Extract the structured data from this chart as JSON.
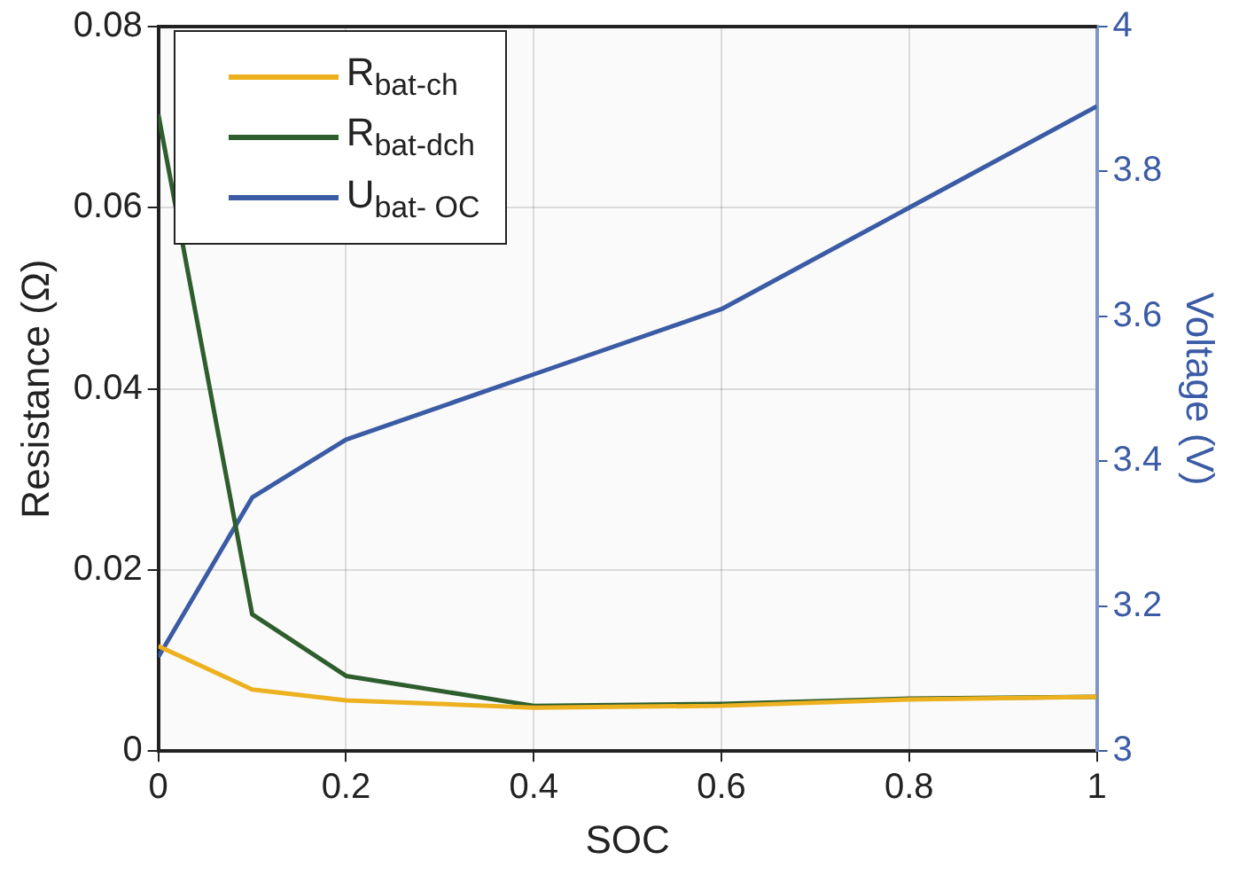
{
  "chart_data": {
    "type": "line",
    "xlabel": "SOC",
    "ylabel": "Resistance (Ω)",
    "y2label": "Voltage (V)",
    "x": [
      0,
      0.1,
      0.2,
      0.4,
      0.6,
      0.8,
      1
    ],
    "series": [
      {
        "name": "R$_{bat-ch}$",
        "color": "#edb120",
        "values": [
          0.0116,
          0.0068,
          0.0056,
          0.0048,
          0.005,
          0.0057,
          0.006
        ]
      },
      {
        "name": "R$_{bat-dch}$",
        "color": "#2e5e2e",
        "values": [
          0.0703,
          0.0151,
          0.0083,
          0.005,
          0.0052,
          0.0058,
          0.006
        ]
      },
      {
        "name": "U$_{bat- OC}$",
        "color": "#3b5ba5",
        "axis": "y2",
        "values": [
          3.13,
          3.35,
          3.43,
          3.52,
          3.61,
          3.75,
          3.89
        ]
      }
    ],
    "xlim": [
      0,
      1
    ],
    "xticks": [
      0,
      0.2,
      0.4,
      0.6,
      0.8,
      1
    ],
    "ylim": [
      0,
      0.08
    ],
    "yticks": [
      0,
      0.02,
      0.04,
      0.06,
      0.08
    ],
    "y2lim": [
      3,
      4
    ],
    "y2ticks": [
      3,
      3.2,
      3.4,
      3.6,
      3.8,
      4
    ],
    "grid": true,
    "legend": "top left",
    "marker": "none",
    "line_style": "solid"
  }
}
